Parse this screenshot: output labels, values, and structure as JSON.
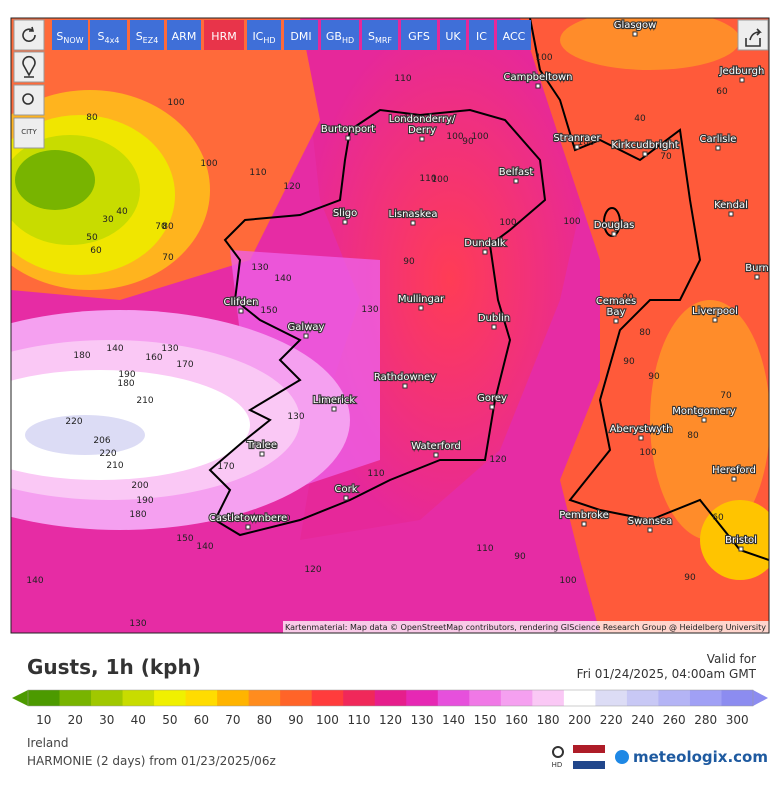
{
  "toolbar": {
    "buttons": [
      {
        "main": "S",
        "sub": "NOW"
      },
      {
        "main": "S",
        "sub": "4x4"
      },
      {
        "main": "S",
        "sub": "EZ4"
      },
      {
        "main": "ARM"
      },
      {
        "main": "HRM"
      },
      {
        "main": "IC",
        "sub": "HD"
      },
      {
        "main": "DMI"
      },
      {
        "main": "GB",
        "sub": "HD"
      },
      {
        "main": "S",
        "sub": "MRF"
      },
      {
        "main": "GFS"
      },
      {
        "main": "UK"
      },
      {
        "main": "IC"
      },
      {
        "main": "ACC"
      }
    ],
    "side_label": "CITY"
  },
  "places": [
    "Glasgow",
    "Campbeltown",
    "Jedburgh",
    "Londonderry/",
    "Derry",
    "Burtonport",
    "Stranraer",
    "Kirkcudbright",
    "Carlisle",
    "Belfast",
    "Sligo",
    "Lisnaskea",
    "Kendal",
    "Douglas",
    "Dundalk",
    "Burn",
    "Clifden",
    "Mullingar",
    "Galway",
    "Dublin",
    "Cemaes",
    "Bay",
    "Liverpool",
    "Rathdowney",
    "Limerick",
    "Gorey",
    "Montgomery",
    "Aberystwyth",
    "Tralee",
    "Waterford",
    "Hereford",
    "Cork",
    "Castletownbere",
    "Pembroke",
    "Swansea",
    "Bristol"
  ],
  "contour_labels": [
    100,
    80,
    70,
    40,
    30,
    50,
    60,
    70,
    80,
    100,
    110,
    120,
    130,
    140,
    150,
    180,
    140,
    160,
    130,
    170,
    190,
    180,
    210,
    220,
    206,
    220,
    210,
    200,
    190,
    180,
    150,
    140,
    140,
    170,
    130,
    120,
    120,
    130,
    110,
    100,
    110,
    100,
    100,
    90,
    100,
    110,
    90,
    100,
    100,
    120,
    110,
    110,
    90,
    100,
    90,
    80,
    90,
    80,
    90,
    90,
    70,
    60,
    40,
    60,
    70,
    100,
    100,
    130
  ],
  "attribution": "Kartenmaterial: Map data © OpenStreetMap contributors, rendering GIScience Research Group @ Heidelberg University",
  "title": "Gusts, 1h (kph)",
  "valid_label": "Valid for",
  "valid_time": "Fri 01/24/2025, 04:00am GMT",
  "legend": {
    "ticks": [
      10,
      20,
      30,
      40,
      50,
      60,
      70,
      80,
      90,
      100,
      110,
      120,
      130,
      140,
      150,
      160,
      180,
      200,
      220,
      240,
      260,
      280,
      300
    ],
    "colors": [
      "#4c9a00",
      "#78b400",
      "#a0c800",
      "#c8dc00",
      "#f0f000",
      "#ffdc00",
      "#ffb400",
      "#ff8c1e",
      "#ff6428",
      "#ff3c3c",
      "#f0285a",
      "#e61e8c",
      "#e628b4",
      "#e650dc",
      "#f078e6",
      "#f5a0f0",
      "#fac8f5",
      "#ffffff",
      "#dcdcf5",
      "#c8c8f5",
      "#b4b4f5",
      "#a0a0f5",
      "#8c8cf0"
    ]
  },
  "region": "Ireland",
  "model": "HARMONIE (2 days) from 01/23/2025/06z",
  "hd": "HD",
  "brand": "meteologix.com"
}
